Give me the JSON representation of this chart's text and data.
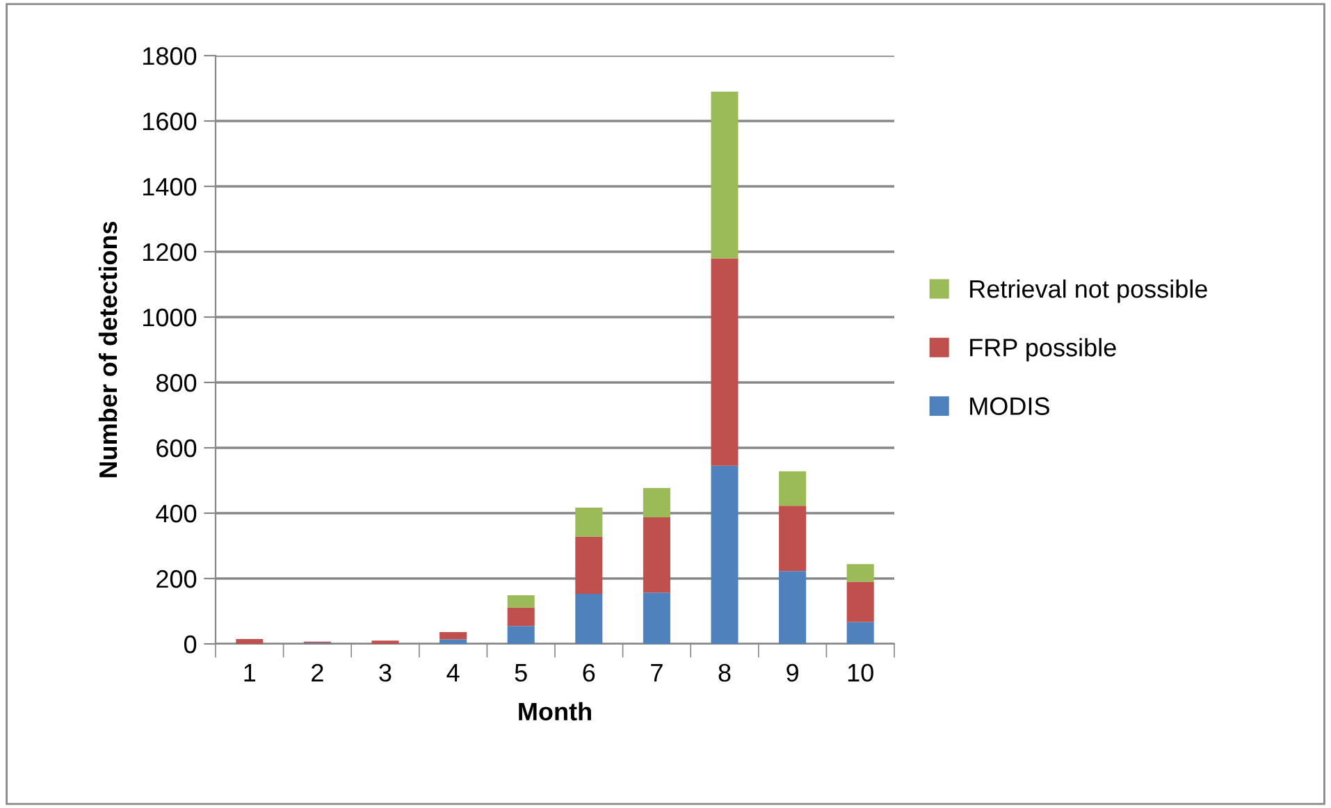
{
  "chart_data": {
    "type": "bar",
    "stacked": true,
    "xlabel": "Month",
    "ylabel": "Number of detections",
    "categories": [
      "1",
      "2",
      "3",
      "4",
      "5",
      "6",
      "7",
      "8",
      "9",
      "10"
    ],
    "series": [
      {
        "name": "MODIS",
        "color": "#4f81bd",
        "values": [
          null,
          3,
          null,
          14,
          55,
          153,
          157,
          545,
          223,
          67
        ]
      },
      {
        "name": "FRP possible",
        "color": "#c0504d",
        "values": [
          15,
          4,
          10,
          22,
          56,
          175,
          230,
          635,
          200,
          123
        ]
      },
      {
        "name": "Retrieval not possible",
        "color": "#9bbb59",
        "values": [
          0,
          0,
          0,
          0,
          38,
          89,
          90,
          510,
          105,
          54
        ]
      }
    ],
    "ylim": [
      0,
      1800
    ],
    "yticks": [
      0,
      200,
      400,
      600,
      800,
      1000,
      1200,
      1400,
      1600,
      1800
    ],
    "grid": "y",
    "legend": "right"
  }
}
